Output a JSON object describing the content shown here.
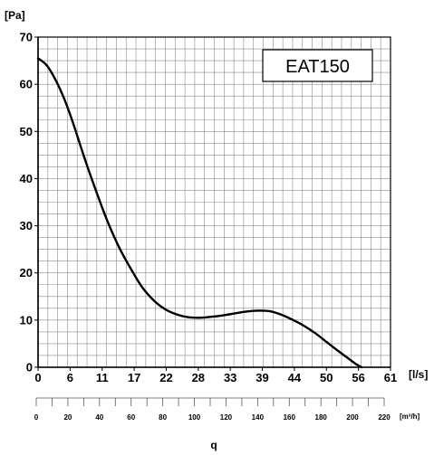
{
  "chart_data": {
    "type": "line",
    "title": "",
    "model_label": "EAT150",
    "ylabel": "[Pa]",
    "xlabel": "[l/s]",
    "x2label": "[m³/h]",
    "bottom_label": "q",
    "xlim": [
      0,
      61
    ],
    "ylim": [
      0,
      70
    ],
    "grid": true,
    "x_ticks": [
      "0",
      "6",
      "11",
      "17",
      "22",
      "28",
      "33",
      "39",
      "44",
      "50",
      "56",
      "61"
    ],
    "y_ticks": [
      "0",
      "10",
      "20",
      "30",
      "40",
      "50",
      "60",
      "70"
    ],
    "x2_ticks": [
      "0",
      "20",
      "40",
      "60",
      "80",
      "100",
      "120",
      "140",
      "160",
      "180",
      "200",
      "220"
    ],
    "series": [
      {
        "x": [
          0,
          1.5,
          3,
          4.5,
          6,
          8,
          10,
          12,
          14,
          16,
          18,
          20,
          22,
          24,
          26,
          28,
          30,
          32,
          34,
          36,
          38,
          40,
          42,
          44,
          46,
          48,
          50,
          52,
          54,
          55,
          56
        ],
        "y": [
          65.5,
          64,
          61,
          57,
          52,
          44.5,
          37.5,
          31,
          25.5,
          21,
          17,
          14.2,
          12.3,
          11.2,
          10.6,
          10.5,
          10.7,
          11,
          11.4,
          11.8,
          12,
          11.9,
          11.2,
          10.1,
          8.8,
          7.2,
          5.3,
          3.4,
          1.6,
          0.7,
          0
        ]
      }
    ]
  }
}
